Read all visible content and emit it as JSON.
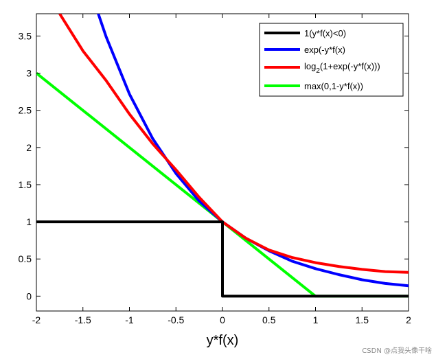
{
  "chart_data": {
    "type": "line",
    "title": "",
    "xlabel": "y*f(x)",
    "ylabel": "",
    "xlim": [
      -2,
      2
    ],
    "ylim": [
      -0.2,
      3.8
    ],
    "xticks": [
      "-2",
      "-1.5",
      "-1",
      "-0.5",
      "0",
      "0.5",
      "1",
      "1.5",
      "2"
    ],
    "xtick_values": [
      -2,
      -1.5,
      -1,
      -0.5,
      0,
      0.5,
      1,
      1.5,
      2
    ],
    "yticks": [
      "0",
      "0.5",
      "1",
      "1.5",
      "2",
      "2.5",
      "3",
      "3.5"
    ],
    "ytick_values": [
      0,
      0.5,
      1,
      1.5,
      2,
      2.5,
      3,
      3.5
    ],
    "grid": false,
    "legend_position": "top-right",
    "series": [
      {
        "name": "1(y*f(x)<0)",
        "legend_label": "1(y*f(x)<0)",
        "color": "#000000",
        "x": [
          -2,
          0,
          0,
          2
        ],
        "y": [
          1,
          1,
          0,
          0
        ]
      },
      {
        "name": "exp(-y*f(x)",
        "legend_label": "exp(-y*f(x)",
        "color": "#0000ff",
        "x": [
          -1.34,
          -1.25,
          -1.0,
          -0.75,
          -0.5,
          -0.25,
          0,
          0.25,
          0.5,
          0.75,
          1.0,
          1.25,
          1.5,
          1.75,
          2.0
        ],
        "y": [
          3.82,
          3.49,
          2.72,
          2.12,
          1.65,
          1.28,
          1.0,
          0.78,
          0.61,
          0.47,
          0.37,
          0.29,
          0.22,
          0.17,
          0.14
        ]
      },
      {
        "name": "log2(1+exp(-y*f(x)))",
        "legend_label_main": "log",
        "legend_label_sub": "2",
        "legend_label_rest": "(1+exp(-y*f(x)))",
        "color": "#ff0000",
        "x": [
          -1.75,
          -1.5,
          -1.25,
          -1.0,
          -0.75,
          -0.5,
          -0.25,
          0,
          0.25,
          0.5,
          0.75,
          1.0,
          1.25,
          1.5,
          1.75,
          2.0
        ],
        "y": [
          3.8,
          3.3,
          2.9,
          2.45,
          2.05,
          1.7,
          1.33,
          1.0,
          0.78,
          0.62,
          0.52,
          0.45,
          0.4,
          0.36,
          0.33,
          0.32
        ]
      },
      {
        "name": "max(0,1-y*f(x))",
        "legend_label": "max(0,1-y*f(x))",
        "color": "#00ff00",
        "x": [
          -2,
          1,
          2
        ],
        "y": [
          3,
          0,
          0
        ]
      }
    ]
  },
  "watermark": "CSDN @点我头像干啥"
}
